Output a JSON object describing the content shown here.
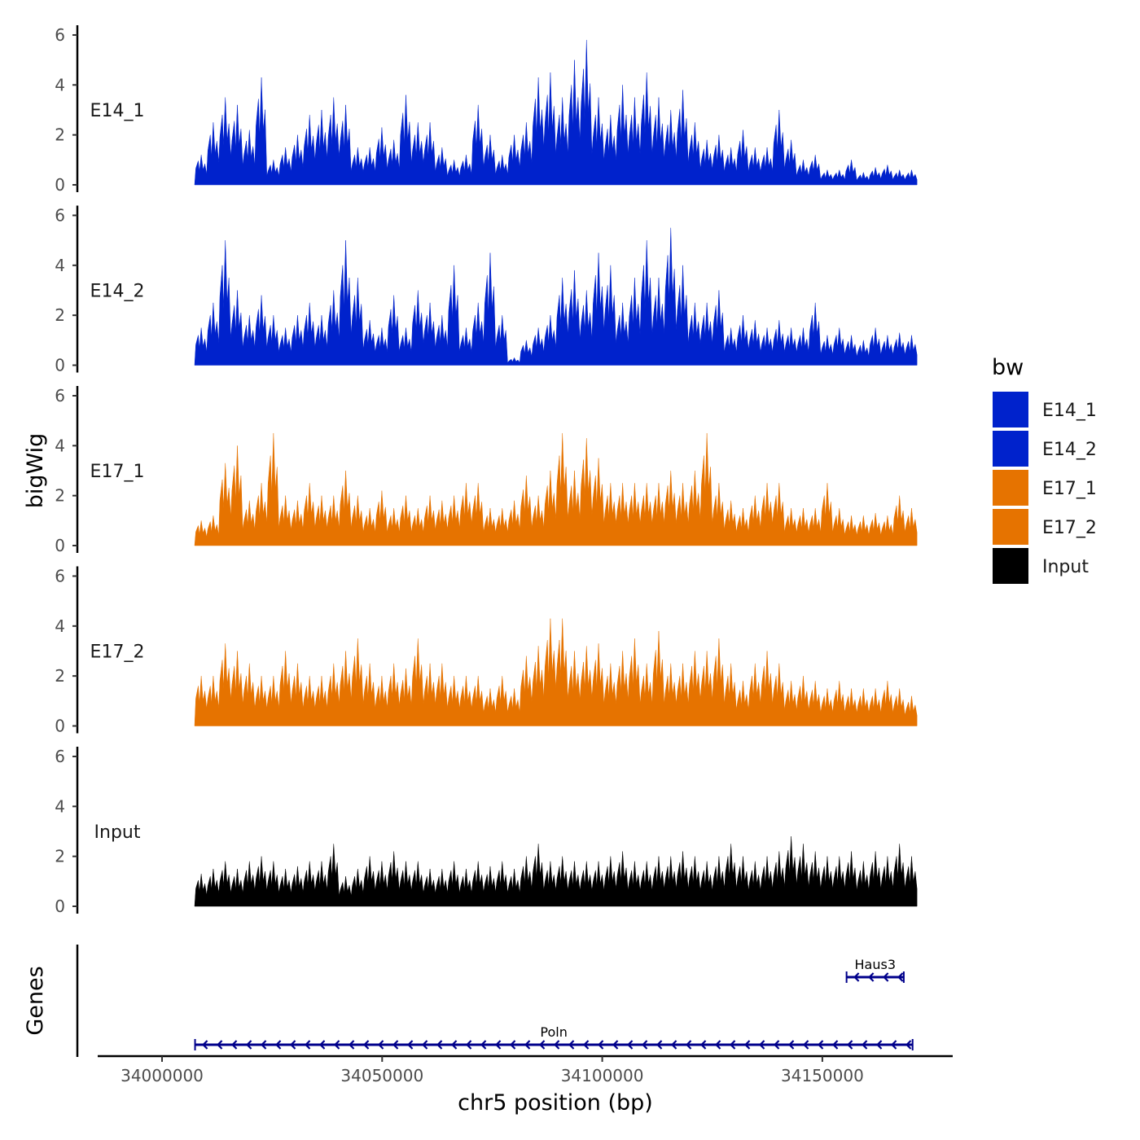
{
  "chart_data": {
    "type": "area",
    "title": "",
    "xlabel": "chr5 position (bp)",
    "ylabel": "bigWig",
    "gene_track_label": "Genes",
    "x_ticks": [
      34000000,
      34050000,
      34100000,
      34150000
    ],
    "x_tick_labels": [
      "34000000",
      "34050000",
      "34100000",
      "34150000"
    ],
    "xlim": [
      33985000,
      34180000
    ],
    "ylim": [
      0,
      6.3
    ],
    "y_ticks": [
      0,
      2,
      4,
      6
    ],
    "y_tick_labels": [
      "0",
      "2",
      "4",
      "6"
    ],
    "signal_range_bp": [
      34007400,
      34171500
    ],
    "legend": {
      "title": "bw",
      "placement": "right"
    },
    "series": [
      {
        "name": "E14_1",
        "color": "#0022CC",
        "values": [
          1.2,
          2.5,
          3.5,
          3.2,
          2.2,
          4.3,
          1.0,
          1.5,
          2.0,
          2.8,
          3.0,
          3.5,
          3.2,
          1.5,
          1.5,
          2.3,
          1.8,
          3.6,
          2.5,
          2.5,
          1.5,
          1.0,
          1.2,
          3.2,
          2.0,
          1.2,
          2.0,
          2.5,
          4.3,
          4.5,
          3.5,
          5.0,
          5.8,
          3.5,
          2.8,
          4.0,
          3.5,
          4.5,
          3.5,
          3.0,
          3.8,
          2.5,
          1.8,
          2.0,
          1.5,
          2.2,
          1.5,
          1.5,
          3.0,
          1.8,
          1.0,
          1.2,
          0.6,
          0.6,
          1.0,
          0.5,
          0.7,
          0.8,
          0.6,
          0.6
        ]
      },
      {
        "name": "E14_2",
        "color": "#0022CC",
        "values": [
          1.5,
          2.5,
          5.0,
          3.0,
          2.0,
          2.8,
          2.0,
          1.5,
          2.0,
          2.5,
          2.0,
          3.0,
          5.0,
          3.5,
          1.8,
          1.5,
          2.8,
          1.5,
          3.0,
          2.5,
          2.0,
          4.0,
          1.5,
          2.5,
          4.5,
          2.0,
          0.3,
          1.0,
          1.5,
          2.0,
          3.5,
          3.8,
          3.0,
          4.5,
          4.0,
          2.5,
          3.5,
          5.0,
          3.5,
          5.5,
          4.0,
          2.5,
          2.5,
          3.0,
          1.5,
          2.0,
          1.8,
          1.5,
          1.8,
          1.5,
          1.5,
          2.5,
          1.2,
          1.5,
          1.2,
          1.0,
          1.5,
          1.2,
          1.3,
          1.2
        ]
      },
      {
        "name": "E17_1",
        "color": "#E67300",
        "values": [
          1.0,
          1.2,
          3.3,
          4.0,
          1.8,
          2.5,
          4.5,
          2.0,
          1.8,
          2.5,
          2.0,
          2.0,
          3.0,
          2.0,
          1.5,
          2.2,
          1.5,
          2.0,
          1.5,
          2.0,
          1.8,
          2.0,
          2.5,
          2.5,
          1.5,
          1.5,
          1.8,
          2.8,
          2.0,
          3.0,
          4.5,
          3.0,
          4.3,
          3.5,
          2.5,
          2.5,
          2.5,
          2.5,
          2.5,
          3.0,
          2.5,
          3.0,
          4.5,
          2.5,
          1.8,
          1.5,
          2.0,
          2.5,
          2.5,
          1.5,
          1.5,
          1.5,
          2.5,
          1.5,
          1.2,
          1.2,
          1.3,
          1.2,
          2.0,
          1.5
        ]
      },
      {
        "name": "E17_2",
        "color": "#E67300",
        "values": [
          2.0,
          2.0,
          3.3,
          3.0,
          2.5,
          2.0,
          2.0,
          3.0,
          2.5,
          2.0,
          2.0,
          2.5,
          3.0,
          3.5,
          2.5,
          2.0,
          2.5,
          2.3,
          3.5,
          2.5,
          2.5,
          2.0,
          2.0,
          2.0,
          1.5,
          2.0,
          1.5,
          2.8,
          3.2,
          4.3,
          4.3,
          3.0,
          3.2,
          3.3,
          2.5,
          3.0,
          3.5,
          2.5,
          3.8,
          2.5,
          2.5,
          3.0,
          3.0,
          3.5,
          2.5,
          1.8,
          2.5,
          3.0,
          2.5,
          1.8,
          2.0,
          1.8,
          1.5,
          1.8,
          1.5,
          1.5,
          1.5,
          1.8,
          1.5,
          1.2
        ]
      },
      {
        "name": "Input",
        "color": "#000000",
        "values": [
          1.3,
          1.5,
          1.8,
          1.5,
          1.8,
          2.0,
          1.8,
          1.5,
          1.6,
          1.8,
          1.8,
          2.5,
          1.2,
          1.5,
          2.0,
          1.8,
          2.2,
          1.8,
          1.8,
          1.5,
          1.5,
          1.8,
          1.5,
          1.8,
          1.6,
          1.8,
          1.5,
          2.0,
          2.5,
          1.8,
          2.0,
          1.8,
          1.8,
          1.8,
          2.0,
          2.2,
          1.8,
          1.8,
          2.0,
          2.0,
          2.2,
          2.0,
          1.8,
          2.0,
          2.5,
          2.0,
          1.8,
          2.0,
          2.2,
          2.8,
          2.5,
          2.2,
          2.0,
          2.0,
          2.2,
          1.8,
          2.2,
          2.0,
          2.5,
          2.0
        ]
      }
    ],
    "genes": [
      {
        "name": "Haus3",
        "start": 34155500,
        "end": 34168500,
        "strand": "-",
        "color": "#00008B",
        "row": 0
      },
      {
        "name": "Poln",
        "start": 34007500,
        "end": 34170500,
        "strand": "-",
        "color": "#00008B",
        "row": 1
      }
    ]
  }
}
